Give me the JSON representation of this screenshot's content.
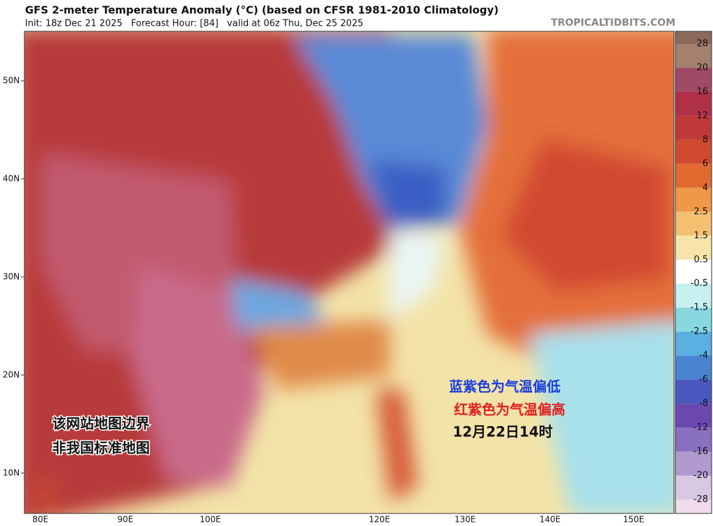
{
  "header": {
    "title": "GFS 2-meter Temperature Anomaly (°C) (based on CFSR 1981-2010 Climatology)",
    "subtitle": "Init: 18z Dec 21 2025   Forecast Hour: [84]   valid at 06z Thu, Dec 25 2025",
    "watermark": "TROPICALTIDBITS.COM"
  },
  "map": {
    "lat_labels": [
      "50N",
      "40N",
      "30N",
      "20N",
      "10N"
    ],
    "lon_labels": [
      "80E",
      "90E",
      "100E",
      "120E",
      "130E",
      "140E",
      "150E"
    ]
  },
  "colorbar": {
    "labels": [
      "28",
      "20",
      "16",
      "12",
      "8",
      "6",
      "4",
      "2.5",
      "1.5",
      "0.5",
      "-0.5",
      "-1.5",
      "-2.5",
      "-4",
      "-6",
      "-8",
      "-12",
      "-16",
      "-20",
      "-28"
    ]
  },
  "annotations": {
    "cold": "蓝紫色为气温偏低",
    "warm": "红紫色为气温偏高",
    "time": "12月22日14时",
    "disclaimer": [
      "该网站地图边界",
      "非我国标准地图"
    ]
  }
}
